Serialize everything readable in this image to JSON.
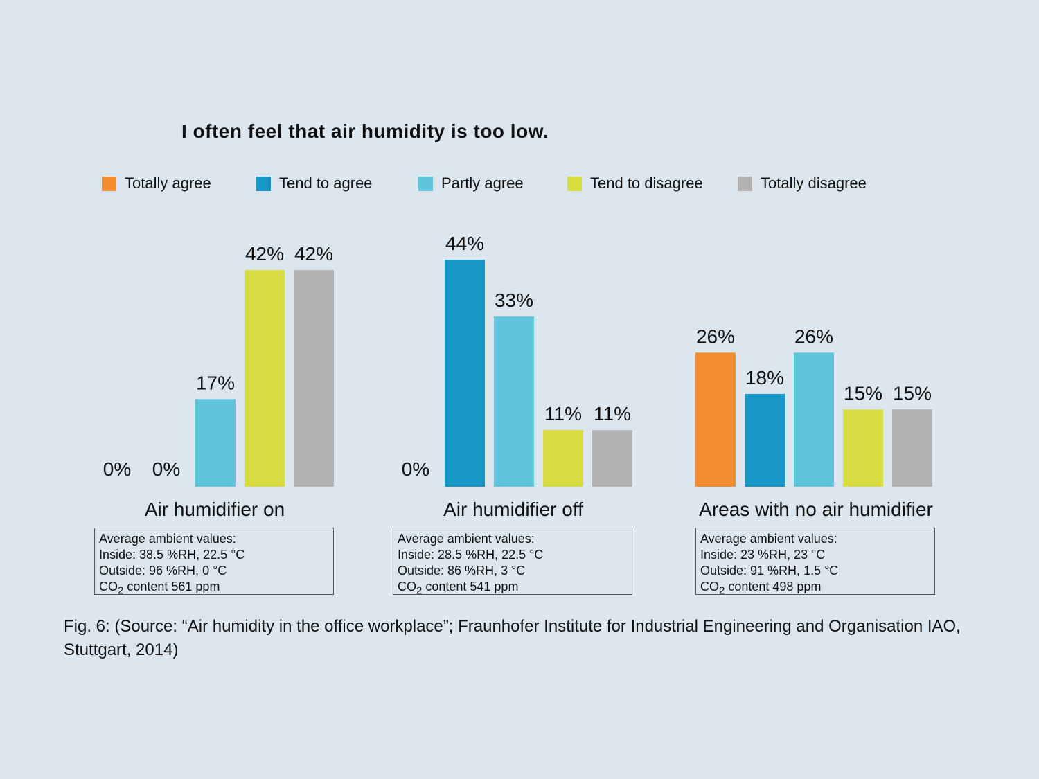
{
  "chart_data": {
    "type": "bar",
    "title": "I often feel that air humidity is too low.",
    "legend_position": "top",
    "grid": false,
    "ylim": [
      0,
      45
    ],
    "series": [
      {
        "name": "Totally agree",
        "color": "#f28e2f"
      },
      {
        "name": "Tend to agree",
        "color": "#1896c6"
      },
      {
        "name": "Partly agree",
        "color": "#60c4df"
      },
      {
        "name": "Tend to disagree",
        "color": "#d8dd42"
      },
      {
        "name": "Totally disagree",
        "color": "#b2b2b2"
      }
    ],
    "groups": [
      {
        "category": "Air humidifier on",
        "values": [
          0,
          0,
          17,
          42,
          42
        ],
        "labels": [
          "0%",
          "0%",
          "17%",
          "42%",
          "42%"
        ],
        "ambient": {
          "heading": "Average ambient values:",
          "inside": "Inside: 38.5 %RH, 22.5 °C",
          "outside": "Outside: 96 %RH, 0 °C",
          "co2_prefix": "CO",
          "co2_sub": "2",
          "co2_rest": " content 561 ppm"
        }
      },
      {
        "category": "Air humidifier off",
        "values": [
          0,
          44,
          33,
          11,
          11
        ],
        "labels": [
          "0%",
          "44%",
          "33%",
          "11%",
          "11%"
        ],
        "ambient": {
          "heading": "Average ambient values:",
          "inside": "Inside: 28.5 %RH, 22.5 °C",
          "outside": "Outside: 86 %RH, 3 °C",
          "co2_prefix": "CO",
          "co2_sub": "2",
          "co2_rest": " content 541 ppm"
        }
      },
      {
        "category": "Areas with no air humidifier",
        "values": [
          26,
          18,
          26,
          15,
          15
        ],
        "labels": [
          "26%",
          "18%",
          "26%",
          "15%",
          "15%"
        ],
        "ambient": {
          "heading": "Average ambient values:",
          "inside": "Inside: 23 %RH, 23 °C",
          "outside": "Outside: 91 %RH, 1.5 °C",
          "co2_prefix": "CO",
          "co2_sub": "2",
          "co2_rest": " content 498 ppm"
        }
      }
    ]
  },
  "caption": "Fig. 6: (Source: “Air humidity in the office workplace”; Fraunhofer Institute for Industrial Engineering and Organisation IAO, Stuttgart, 2014)"
}
